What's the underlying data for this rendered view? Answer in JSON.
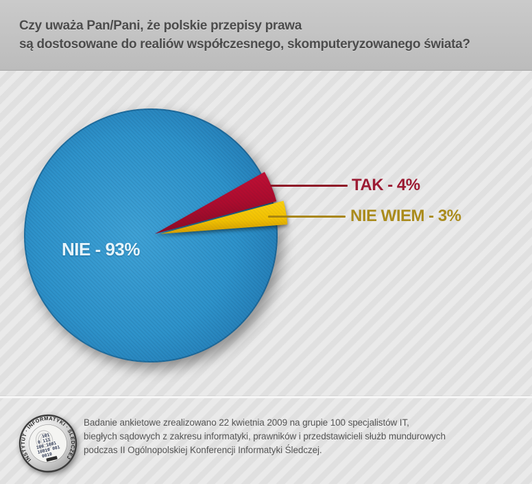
{
  "header": {
    "title_lines": [
      "Czy uważa Pan/Pani, że polskie przepisy prawa",
      "są dostosowane do realiów współczesnego, skomputeryzowanego świata?"
    ]
  },
  "chart_data": {
    "type": "pie",
    "title": "Czy uważa Pan/Pani, że polskie przepisy prawa są dostosowane do realiów współczesnego, skomputeryzowanego świata?",
    "categories": [
      "NIE",
      "TAK",
      "NIE WIEM"
    ],
    "values": [
      93,
      4,
      3
    ],
    "unit": "percent",
    "start_angle_deg": -29.4,
    "legend_position": "right-callouts",
    "grid": false,
    "slices": [
      {
        "label": "NIE",
        "value": 93,
        "color": "#2e93cb",
        "callout": "NIE - 93%",
        "callout_color": "#e6f4fb",
        "exploded": false
      },
      {
        "label": "TAK",
        "value": 4,
        "color": "#b50d31",
        "callout": "TAK - 4%",
        "callout_color": "#9c1b33",
        "leader_color": "#8e1126",
        "exploded": true
      },
      {
        "label": "NIE WIEM",
        "value": 3,
        "color": "#f5c402",
        "callout": "NIE WIEM - 3%",
        "callout_color": "#aa8b1c",
        "leader_color": "#a8860f",
        "exploded": true
      }
    ]
  },
  "footer": {
    "lines": [
      "Badanie ankietowe zrealizowano 22 kwietnia 2009 na grupie 100 specjalistów IT,",
      "biegłych sądowych z zakresu informatyki, prawników i przedstawicieli służb mundurowych",
      "podczas II Ogólnopolskiej Konferencji Informatyki Śledczej."
    ],
    "logo": {
      "ring_text": "INSTYTUT · INFORMATYKI · ŚLEDCZEJ",
      "binary_rows": [
        "101",
        "0 111",
        "100 1001",
        "10010 001",
        "0010"
      ]
    }
  }
}
